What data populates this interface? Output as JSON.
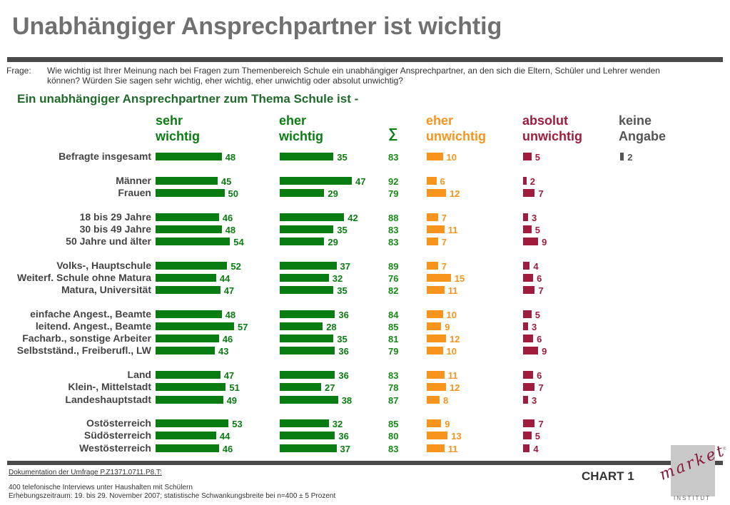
{
  "header": {
    "title": "Unabhängiger Ansprechpartner ist wichtig",
    "question_label": "Frage:",
    "question_text": "Wie wichtig ist Ihrer Meinung nach bei Fragen zum Themenbereich Schule ein unabhängiger Ansprechpartner, an den sich die Eltern, Schüler und Lehrer wenden können? Würden Sie sagen sehr wichtig, eher wichtig, eher unwichtig oder absolut unwichtig?",
    "subtitle": "Ein unabhängiger Ansprechpartner zum Thema Schule ist -"
  },
  "colors": {
    "sehr": "#0a7d12",
    "eher": "#0a7d12",
    "eher_unwichtig": "#f7941d",
    "absolut": "#a01c3c",
    "keine": "#555555",
    "sum": "#168a16"
  },
  "chart_data": {
    "type": "bar",
    "columns": [
      {
        "key": "sehr",
        "label_line1": "sehr",
        "label_line2": "wichtig"
      },
      {
        "key": "eher",
        "label_line1": "eher",
        "label_line2": "wichtig"
      },
      {
        "key": "sum",
        "label_line1": "∑",
        "label_line2": ""
      },
      {
        "key": "eu",
        "label_line1": "eher",
        "label_line2": "unwichtig"
      },
      {
        "key": "au",
        "label_line1": "absolut",
        "label_line2": "unwichtig"
      },
      {
        "key": "ka",
        "label_line1": "keine",
        "label_line2": "Angabe"
      }
    ],
    "groups": [
      [
        {
          "label": "Befragte insgesamt",
          "sehr": 48,
          "eher": 35,
          "sum": 83,
          "eu": 10,
          "au": 5,
          "ka": 2
        }
      ],
      [
        {
          "label": "Männer",
          "sehr": 45,
          "eher": 47,
          "sum": 92,
          "eu": 6,
          "au": 2,
          "ka": null
        },
        {
          "label": "Frauen",
          "sehr": 50,
          "eher": 29,
          "sum": 79,
          "eu": 12,
          "au": 7,
          "ka": null
        }
      ],
      [
        {
          "label": "18 bis 29 Jahre",
          "sehr": 46,
          "eher": 42,
          "sum": 88,
          "eu": 7,
          "au": 3,
          "ka": null
        },
        {
          "label": "30 bis 49 Jahre",
          "sehr": 48,
          "eher": 35,
          "sum": 83,
          "eu": 11,
          "au": 5,
          "ka": null
        },
        {
          "label": "50 Jahre und älter",
          "sehr": 54,
          "eher": 29,
          "sum": 83,
          "eu": 7,
          "au": 9,
          "ka": null
        }
      ],
      [
        {
          "label": "Volks-, Hauptschule",
          "sehr": 52,
          "eher": 37,
          "sum": 89,
          "eu": 7,
          "au": 4,
          "ka": null
        },
        {
          "label": "Weiterf. Schule ohne Matura",
          "sehr": 44,
          "eher": 32,
          "sum": 76,
          "eu": 15,
          "au": 6,
          "ka": null
        },
        {
          "label": "Matura, Universität",
          "sehr": 47,
          "eher": 35,
          "sum": 82,
          "eu": 11,
          "au": 7,
          "ka": null
        }
      ],
      [
        {
          "label": "einfache Angest., Beamte",
          "sehr": 48,
          "eher": 36,
          "sum": 84,
          "eu": 10,
          "au": 5,
          "ka": null
        },
        {
          "label": "leitend. Angest., Beamte",
          "sehr": 57,
          "eher": 28,
          "sum": 85,
          "eu": 9,
          "au": 3,
          "ka": null
        },
        {
          "label": "Facharb., sonstige Arbeiter",
          "sehr": 46,
          "eher": 35,
          "sum": 81,
          "eu": 12,
          "au": 6,
          "ka": null
        },
        {
          "label": "Selbstständ., Freiberufl., LW",
          "sehr": 43,
          "eher": 36,
          "sum": 79,
          "eu": 10,
          "au": 9,
          "ka": null
        }
      ],
      [
        {
          "label": "Land",
          "sehr": 47,
          "eher": 36,
          "sum": 83,
          "eu": 11,
          "au": 6,
          "ka": null
        },
        {
          "label": "Klein-, Mittelstadt",
          "sehr": 51,
          "eher": 27,
          "sum": 78,
          "eu": 12,
          "au": 7,
          "ka": null
        },
        {
          "label": "Landeshauptstadt",
          "sehr": 49,
          "eher": 38,
          "sum": 87,
          "eu": 8,
          "au": 3,
          "ka": null
        }
      ],
      [
        {
          "label": "Ostösterreich",
          "sehr": 53,
          "eher": 32,
          "sum": 85,
          "eu": 9,
          "au": 7,
          "ka": null
        },
        {
          "label": "Südösterreich",
          "sehr": 44,
          "eher": 36,
          "sum": 80,
          "eu": 13,
          "au": 5,
          "ka": null
        },
        {
          "label": "Westösterreich",
          "sehr": 46,
          "eher": 37,
          "sum": 83,
          "eu": 11,
          "au": 4,
          "ka": null
        }
      ]
    ]
  },
  "footer": {
    "doc_link": "Dokumentation der Umfrage P.Z1371.0711.P8.T:",
    "line1": "400 telefonische Interviews unter Haushalten mit Schülern",
    "line2": "Erhebungszeitraum: 19. bis 29. November 2007; statistische Schwankungsbreite bei n=400 ± 5 Prozent",
    "chart_label": "CHART 1",
    "logo_word": "market",
    "logo_sub": "INSTITUT",
    "logo_reg": "®"
  }
}
